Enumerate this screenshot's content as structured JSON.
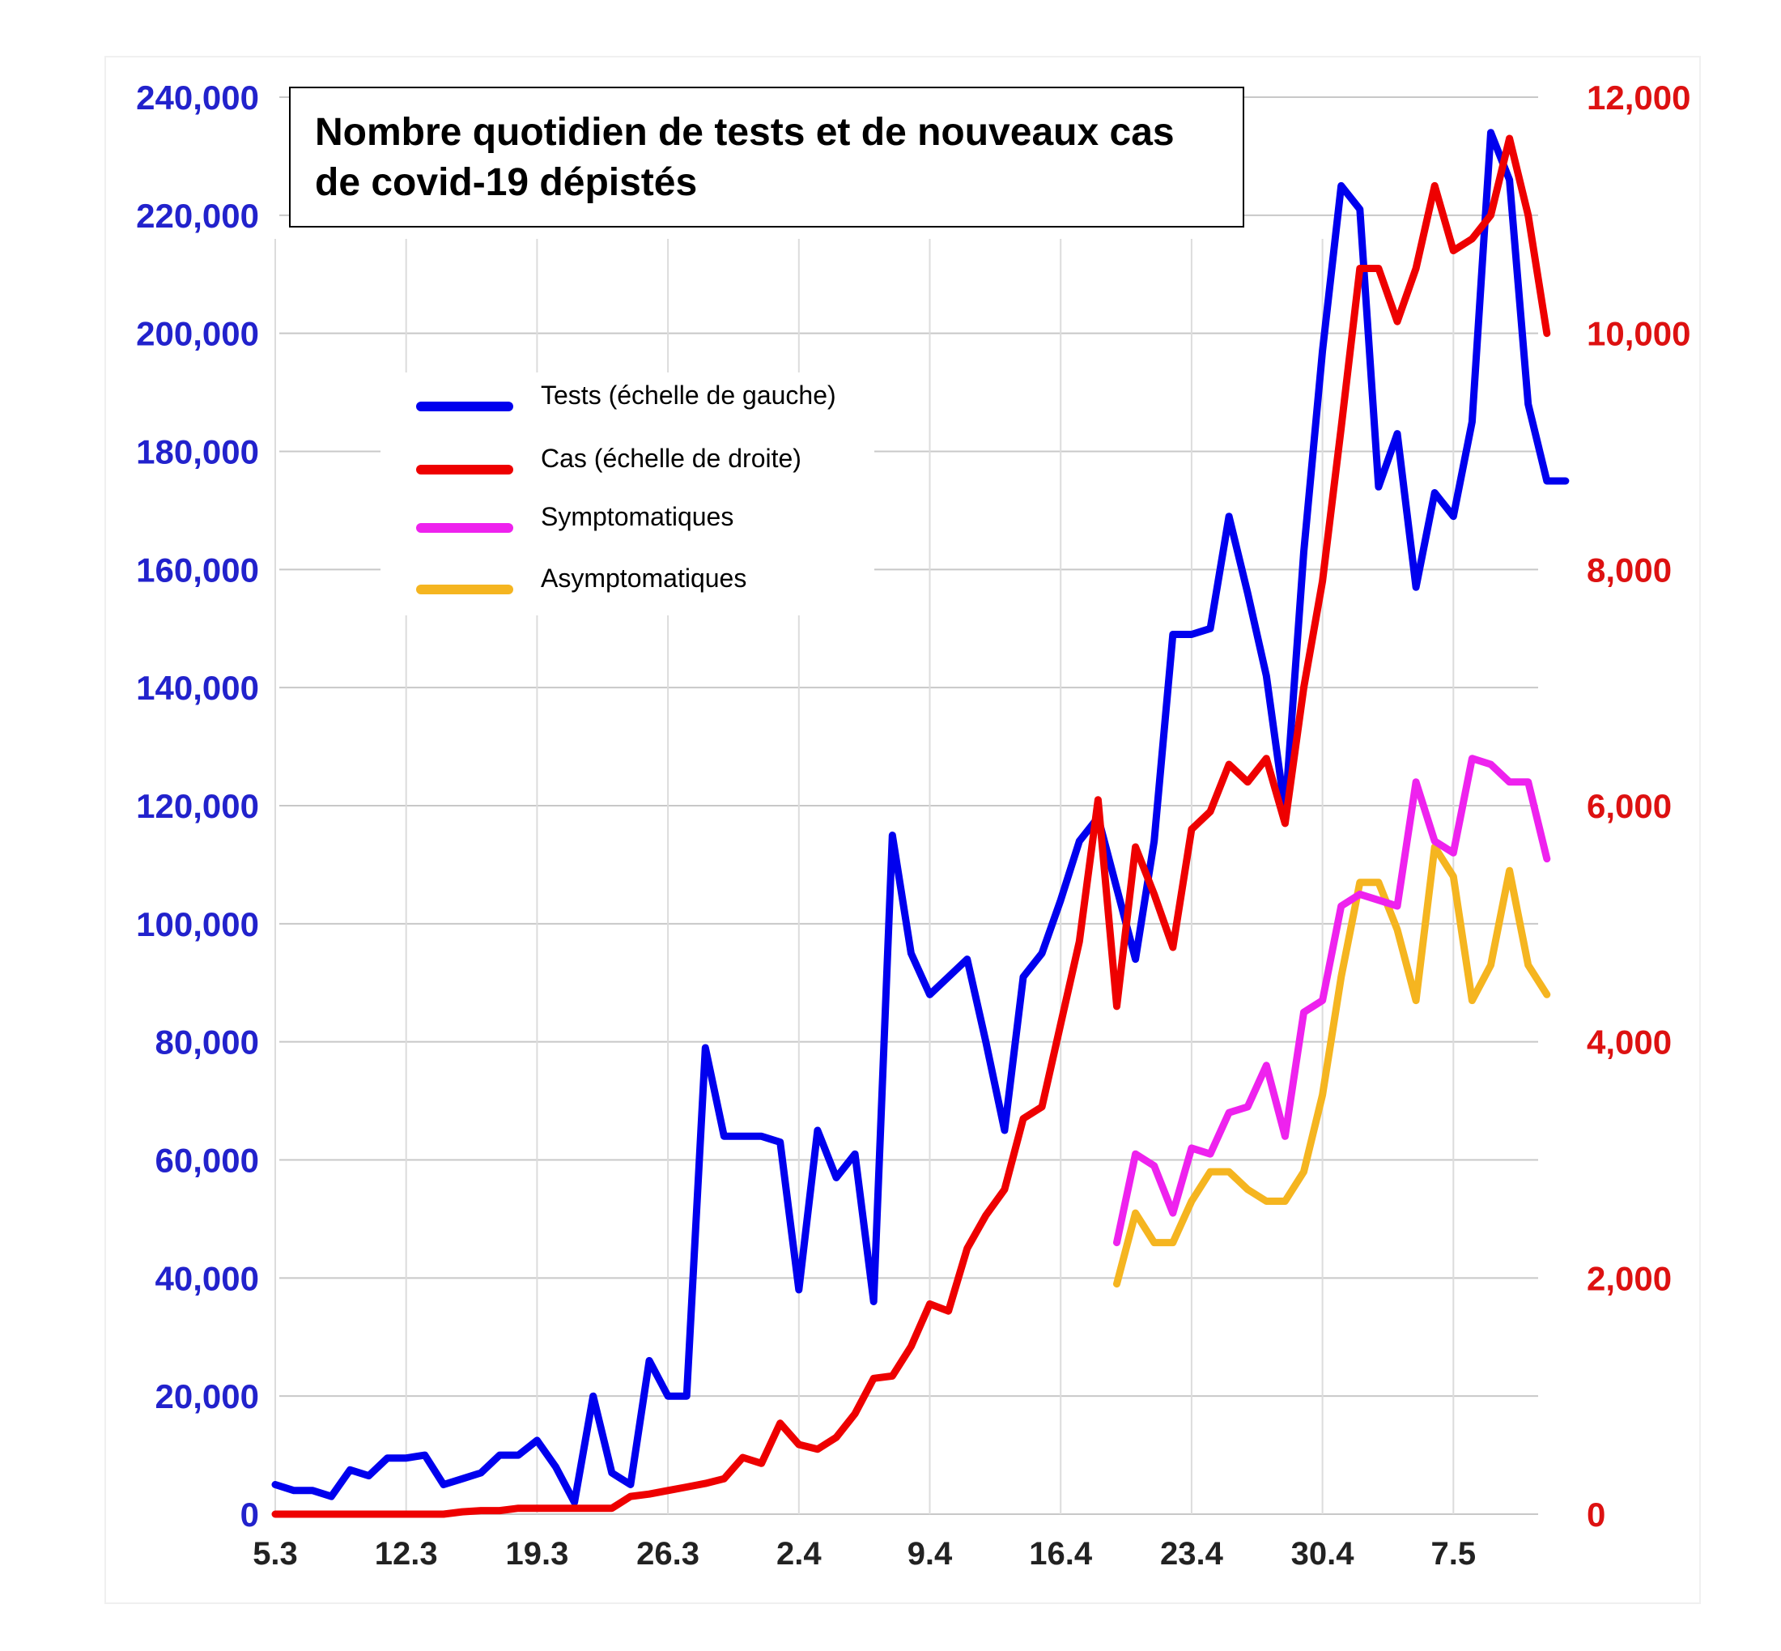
{
  "chart_data": {
    "type": "line",
    "title": "Nombre quotidien de tests et de nouveaux cas de covid-19 dépistés",
    "x_ticks": [
      "5.3",
      "12.3",
      "19.3",
      "26.3",
      "2.4",
      "9.4",
      "16.4",
      "23.4",
      "30.4",
      "7.5"
    ],
    "y_left": {
      "ticks": [
        "0",
        "20,000",
        "40,000",
        "60,000",
        "80,000",
        "100,000",
        "120,000",
        "140,000",
        "160,000",
        "180,000",
        "200,000",
        "220,000",
        "240,000"
      ],
      "lim": [
        0,
        240000
      ],
      "color": "#2222cc"
    },
    "y_right": {
      "ticks": [
        "0",
        "2,000",
        "4,000",
        "6,000",
        "8,000",
        "10,000",
        "12,000"
      ],
      "lim": [
        0,
        12000
      ],
      "color": "#dd1111"
    },
    "grid": "horizontal",
    "legend": [
      {
        "label": "Tests (échelle de gauche)",
        "color": "#0000ee"
      },
      {
        "label": "Cas (échelle de droite)",
        "color": "#ee0000"
      },
      {
        "label": "Symptomatiques",
        "color": "#ee22ee"
      },
      {
        "label": "Asymptomatiques",
        "color": "#f5b520"
      }
    ],
    "series": [
      {
        "name": "Tests (échelle de gauche)",
        "axis": "left",
        "color": "#0000ee",
        "start_day": 0,
        "values": [
          5000,
          4000,
          4000,
          3000,
          7500,
          6500,
          9500,
          9500,
          10000,
          5000,
          6000,
          7000,
          10000,
          10000,
          12500,
          8000,
          2000,
          20000,
          7000,
          5000,
          26000,
          20000,
          20000,
          79000,
          64000,
          64000,
          64000,
          63000,
          38000,
          65000,
          57000,
          61000,
          36000,
          115000,
          95000,
          88000,
          91000,
          94000,
          80000,
          65000,
          91000,
          95000,
          104000,
          114000,
          118000,
          106000,
          94000,
          114000,
          149000,
          149000,
          150000,
          169000,
          156000,
          142000,
          119000,
          163000,
          197000,
          225000,
          221000,
          174000,
          183000,
          157000,
          173000,
          169000,
          185000,
          234000,
          226000,
          188000,
          175000,
          175000
        ]
      },
      {
        "name": "Cas (échelle de droite)",
        "axis": "right",
        "color": "#ee0000",
        "start_day": 0,
        "values": [
          0,
          0,
          0,
          0,
          0,
          0,
          0,
          0,
          0,
          0,
          20,
          30,
          30,
          50,
          50,
          50,
          50,
          50,
          50,
          150,
          170,
          200,
          230,
          260,
          300,
          480,
          430,
          770,
          590,
          550,
          650,
          850,
          1150,
          1170,
          1420,
          1780,
          1720,
          2250,
          2530,
          2750,
          3350,
          3450,
          4150,
          4850,
          6050,
          4300,
          5650,
          5250,
          4800,
          5800,
          5950,
          6350,
          6200,
          6400,
          5850,
          7000,
          7900,
          9200,
          10550,
          10550,
          10100,
          10550,
          11250,
          10700,
          10800,
          11000,
          11650,
          11000,
          10000
        ]
      },
      {
        "name": "Symptomatiques",
        "axis": "right",
        "color": "#ee22ee",
        "start_day": 45,
        "values": [
          2300,
          3050,
          2950,
          2550,
          3100,
          3050,
          3400,
          3450,
          3800,
          3200,
          4250,
          4350,
          5150,
          5250,
          5200,
          5150,
          6200,
          5700,
          5600,
          6400,
          6350,
          6200,
          6200,
          5550
        ]
      },
      {
        "name": "Asymptomatiques",
        "axis": "right",
        "color": "#f5b520",
        "start_day": 45,
        "values": [
          1950,
          2550,
          2300,
          2300,
          2650,
          2900,
          2900,
          2750,
          2650,
          2650,
          2900,
          3550,
          4550,
          5350,
          5350,
          4950,
          4350,
          5650,
          5400,
          4350,
          4650,
          5450,
          4650,
          4400
        ]
      }
    ]
  }
}
